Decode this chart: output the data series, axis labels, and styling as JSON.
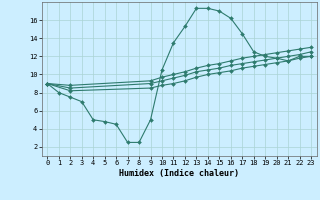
{
  "xlabel": "Humidex (Indice chaleur)",
  "bg_color": "#cceeff",
  "line_color": "#2e7b6e",
  "grid_color": "#aad4d4",
  "xlim": [
    -0.5,
    23.5
  ],
  "ylim": [
    1,
    18
  ],
  "xticks": [
    0,
    1,
    2,
    3,
    4,
    5,
    6,
    7,
    8,
    9,
    10,
    11,
    12,
    13,
    14,
    15,
    16,
    17,
    18,
    19,
    20,
    21,
    22,
    23
  ],
  "yticks": [
    2,
    4,
    6,
    8,
    10,
    12,
    14,
    16
  ],
  "line1_x": [
    0,
    1,
    2,
    3,
    4,
    5,
    6,
    7,
    8,
    9,
    10,
    11,
    12,
    13,
    14,
    15,
    16,
    17,
    18,
    19,
    20,
    21,
    22,
    23
  ],
  "line1_y": [
    9.0,
    8.0,
    7.5,
    7.0,
    5.0,
    4.8,
    4.5,
    2.5,
    2.5,
    5.0,
    10.5,
    13.5,
    15.3,
    17.3,
    17.3,
    17.0,
    16.2,
    14.5,
    12.5,
    12.0,
    11.8,
    11.5,
    12.0,
    12.0
  ],
  "line2_x": [
    0,
    2,
    9,
    10,
    11,
    12,
    13,
    14,
    15,
    16,
    17,
    18,
    19,
    20,
    21,
    22,
    23
  ],
  "line2_y": [
    9.0,
    8.2,
    8.5,
    8.8,
    9.0,
    9.3,
    9.7,
    10.0,
    10.2,
    10.4,
    10.7,
    10.9,
    11.1,
    11.3,
    11.5,
    11.8,
    12.0
  ],
  "line3_x": [
    0,
    2,
    9,
    10,
    11,
    12,
    13,
    14,
    15,
    16,
    17,
    18,
    19,
    20,
    21,
    22,
    23
  ],
  "line3_y": [
    9.0,
    8.5,
    9.0,
    9.3,
    9.6,
    9.9,
    10.3,
    10.5,
    10.7,
    11.0,
    11.2,
    11.4,
    11.6,
    11.8,
    12.0,
    12.2,
    12.5
  ],
  "line4_x": [
    0,
    2,
    9,
    10,
    11,
    12,
    13,
    14,
    15,
    16,
    17,
    18,
    19,
    20,
    21,
    22,
    23
  ],
  "line4_y": [
    9.0,
    8.8,
    9.3,
    9.7,
    10.0,
    10.3,
    10.7,
    11.0,
    11.2,
    11.5,
    11.8,
    12.0,
    12.2,
    12.4,
    12.6,
    12.8,
    13.0
  ],
  "xlabel_fontsize": 6.0,
  "tick_fontsize": 5.0
}
